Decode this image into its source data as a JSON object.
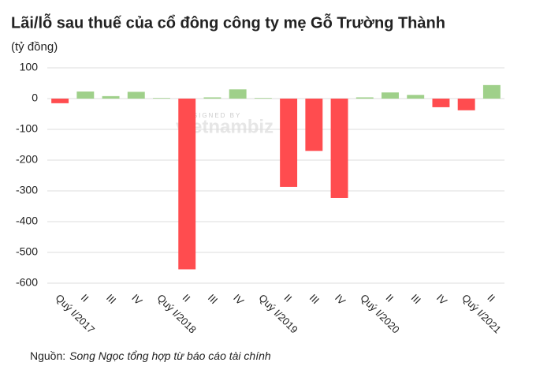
{
  "chart_data": {
    "type": "bar",
    "title": "Lãi/lỗ sau thuế của cổ đông công ty mẹ Gỗ Trường Thành",
    "subtitle": "(tỷ đồng)",
    "watermark_top": "DESIGNED BY",
    "watermark": "vietnambiz",
    "source_label": "Nguồn:",
    "source_text": "Song Ngọc tổng hợp từ báo cáo tài chính",
    "categories": [
      "Quý I/2017",
      "II",
      "III",
      "IV",
      "Quý I/2018",
      "II",
      "III",
      "IV",
      "Quý I/2019",
      "II",
      "III",
      "IV",
      "Quý I/2020",
      "II",
      "III",
      "IV",
      "Quý I/2021",
      "II"
    ],
    "values": [
      -15,
      23,
      8,
      22,
      2,
      -555,
      4,
      30,
      2,
      -287,
      -170,
      -323,
      4,
      20,
      12,
      -28,
      -38,
      44
    ],
    "positive_color": "#9fd08a",
    "negative_color": "#ff4c4f",
    "ylim": [
      -600,
      100
    ],
    "yticks": [
      -600,
      -500,
      -400,
      -300,
      -200,
      -100,
      0,
      100
    ],
    "grid": true
  }
}
